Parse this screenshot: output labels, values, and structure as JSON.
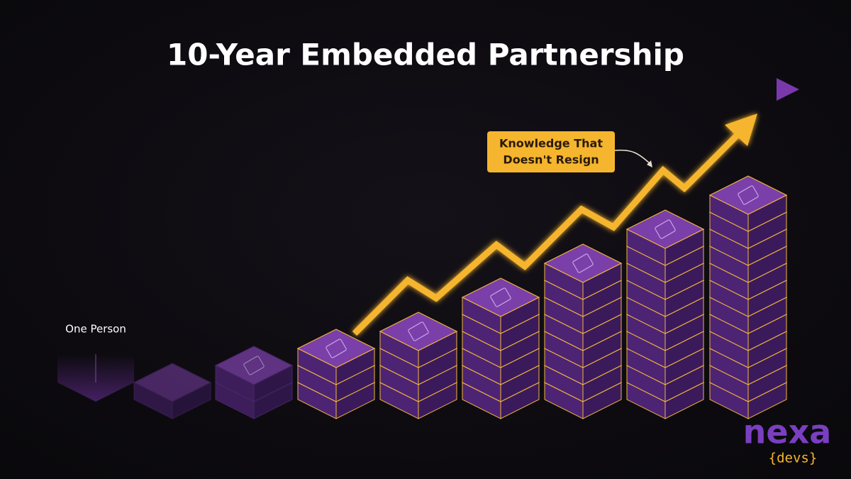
{
  "title": "10-Year Embedded Partnership",
  "callout": {
    "lines": [
      "Knowledge That",
      "Doesn't Resign"
    ]
  },
  "start_label": "One Person",
  "logo": {
    "brand": "nexa",
    "tagline": "{devs}"
  }
}
